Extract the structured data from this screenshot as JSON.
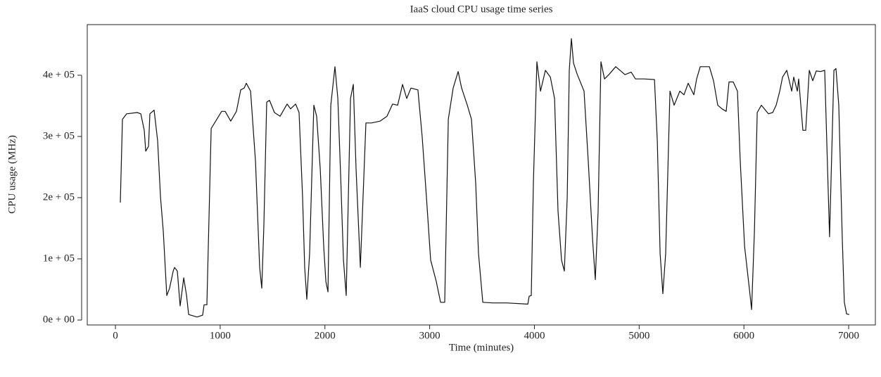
{
  "chart_data": {
    "type": "line",
    "title": "IaaS cloud CPU usage time series",
    "xlabel": "Time (minutes)",
    "ylabel": "CPU usage (MHz)",
    "xlim": [
      -269,
      7255
    ],
    "ylim": [
      -8000,
      482700
    ],
    "xticks": [
      0,
      1000,
      2000,
      3000,
      4000,
      5000,
      6000,
      7000
    ],
    "yticks": [
      {
        "value": 0,
        "label": "0e + 00"
      },
      {
        "value": 100000,
        "label": "1e + 05"
      },
      {
        "value": 200000,
        "label": "2e + 05"
      },
      {
        "value": 300000,
        "label": "3e + 05"
      },
      {
        "value": 400000,
        "label": "4e + 05"
      }
    ],
    "series": [
      {
        "color": "#111111",
        "x": [
          47,
          67,
          107,
          208,
          242,
          275,
          289,
          316,
          329,
          369,
          403,
          430,
          457,
          490,
          517,
          551,
          564,
          591,
          618,
          652,
          679,
          699,
          779,
          833,
          846,
          873,
          914,
          1014,
          1048,
          1101,
          1155,
          1196,
          1229,
          1249,
          1290,
          1337,
          1377,
          1397,
          1417,
          1444,
          1471,
          1518,
          1572,
          1639,
          1672,
          1720,
          1753,
          1787,
          1807,
          1827,
          1854,
          1894,
          1921,
          1955,
          1988,
          2009,
          2029,
          2056,
          2096,
          2123,
          2150,
          2177,
          2203,
          2244,
          2271,
          2297,
          2338,
          2391,
          2445,
          2526,
          2593,
          2646,
          2694,
          2741,
          2781,
          2821,
          2888,
          2929,
          2969,
          3009,
          3063,
          3104,
          3144,
          3178,
          3224,
          3272,
          3305,
          3359,
          3399,
          3439,
          3466,
          3507,
          3601,
          3735,
          3937,
          3950,
          3970,
          3990,
          4024,
          4058,
          4105,
          4152,
          4192,
          4225,
          4259,
          4286,
          4313,
          4333,
          4353,
          4373,
          4407,
          4474,
          4514,
          4555,
          4581,
          4608,
          4635,
          4669,
          4716,
          4776,
          4864,
          4924,
          4964,
          5045,
          5146,
          5173,
          5200,
          5226,
          5253,
          5294,
          5334,
          5388,
          5428,
          5468,
          5522,
          5549,
          5583,
          5670,
          5710,
          5750,
          5791,
          5831,
          5858,
          5898,
          5938,
          5965,
          6006,
          6059,
          6073,
          6100,
          6127,
          6167,
          6234,
          6275,
          6308,
          6342,
          6369,
          6409,
          6456,
          6476,
          6510,
          6523,
          6563,
          6590,
          6624,
          6657,
          6691,
          6731,
          6771,
          6791,
          6818,
          6859,
          6879,
          6906,
          6939,
          6959,
          6980,
          7006
        ],
        "values": [
          192000,
          328000,
          337000,
          339000,
          337000,
          310000,
          276000,
          284000,
          337000,
          343000,
          293000,
          201000,
          144000,
          40000,
          52000,
          80000,
          86000,
          80000,
          23000,
          69000,
          40000,
          9000,
          5000,
          8000,
          25000,
          25000,
          313000,
          341000,
          341000,
          325000,
          341000,
          376000,
          379000,
          387000,
          374000,
          259000,
          86000,
          52000,
          155000,
          356000,
          359000,
          339000,
          333000,
          353000,
          345000,
          353000,
          339000,
          201000,
          86000,
          34000,
          109000,
          351000,
          333000,
          247000,
          121000,
          63000,
          46000,
          351000,
          414000,
          362000,
          236000,
          98000,
          40000,
          362000,
          385000,
          247000,
          86000,
          322000,
          322000,
          325000,
          333000,
          353000,
          351000,
          385000,
          362000,
          379000,
          376000,
          299000,
          201000,
          98000,
          63000,
          29000,
          29000,
          328000,
          379000,
          406000,
          379000,
          351000,
          328000,
          224000,
          109000,
          29000,
          28000,
          28000,
          26000,
          39000,
          40000,
          224000,
          422000,
          374000,
          408000,
          397000,
          362000,
          178000,
          98000,
          80000,
          201000,
          408000,
          460000,
          420000,
          402000,
          374000,
          259000,
          132000,
          66000,
          178000,
          422000,
          394000,
          402000,
          414000,
          401000,
          405000,
          394000,
          394000,
          393000,
          293000,
          109000,
          43000,
          109000,
          374000,
          351000,
          374000,
          368000,
          387000,
          368000,
          394000,
          414000,
          414000,
          391000,
          351000,
          345000,
          341000,
          389000,
          389000,
          374000,
          259000,
          121000,
          40000,
          17000,
          144000,
          339000,
          351000,
          337000,
          339000,
          351000,
          374000,
          397000,
          408000,
          374000,
          397000,
          374000,
          394000,
          310000,
          310000,
          408000,
          391000,
          407000,
          406000,
          408000,
          293000,
          136000,
          408000,
          411000,
          351000,
          132000,
          29000,
          10000,
          9000
        ]
      }
    ]
  }
}
